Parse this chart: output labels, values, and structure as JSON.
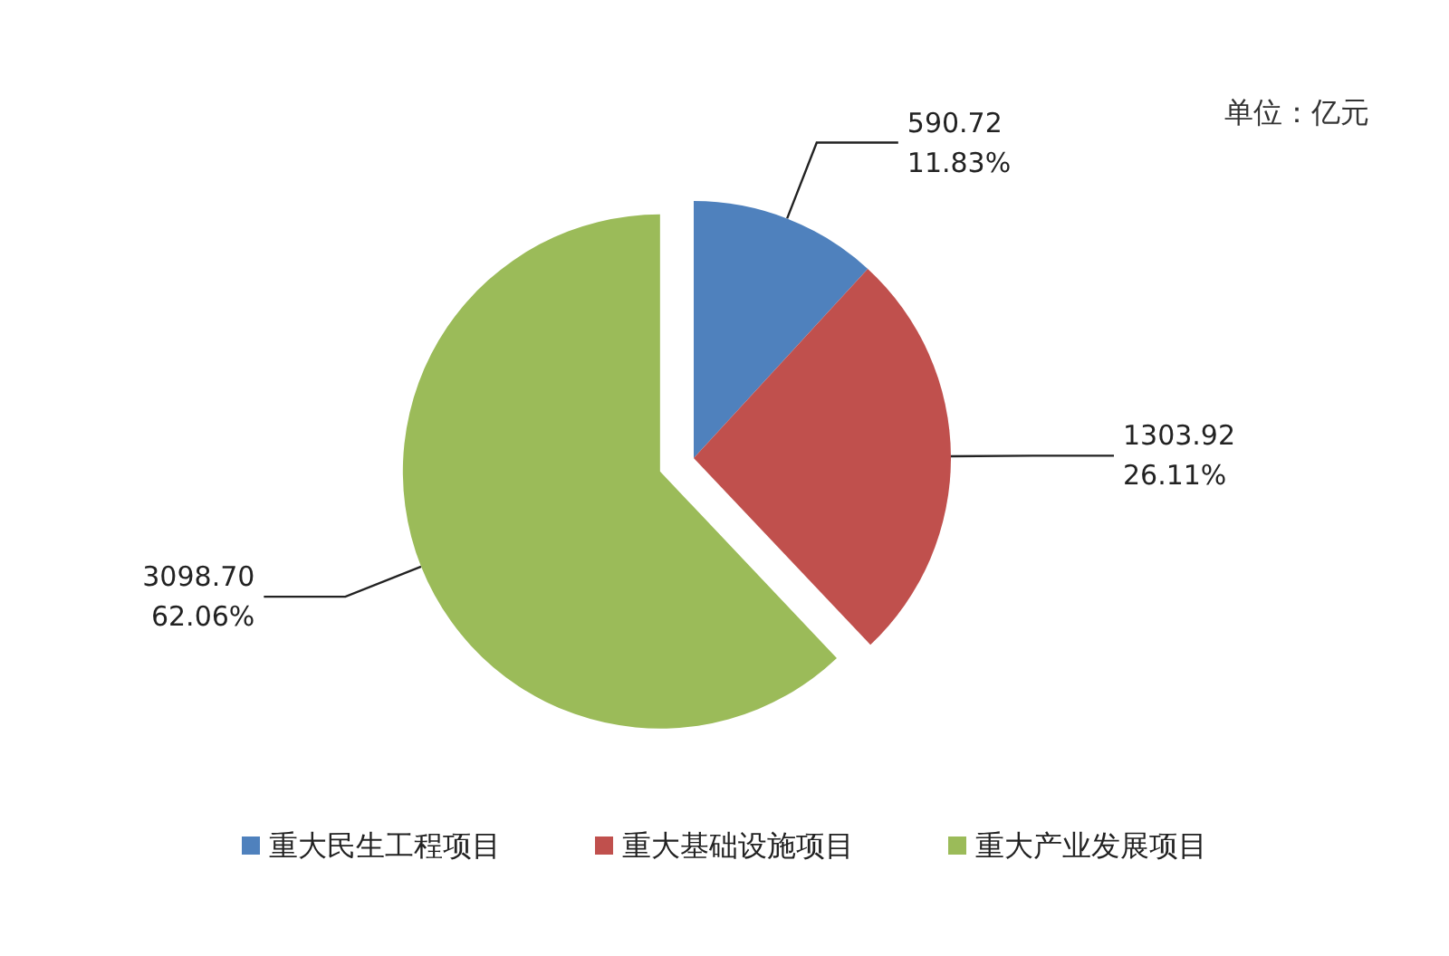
{
  "chart_data": {
    "type": "pie",
    "categories": [
      "重大民生工程项目",
      "重大基础设施项目",
      "重大产业发展项目"
    ],
    "values": [
      590.72,
      1303.92,
      3098.7
    ],
    "colors": [
      "#4f81bd",
      "#c0504d",
      "#9bbb59"
    ],
    "value_labels": [
      "590.72\n11.83%",
      "1303.92\n26.11%",
      "3098.70\n62.06%"
    ],
    "annotations": [
      "单位：亿元"
    ],
    "legend": "bottom"
  }
}
